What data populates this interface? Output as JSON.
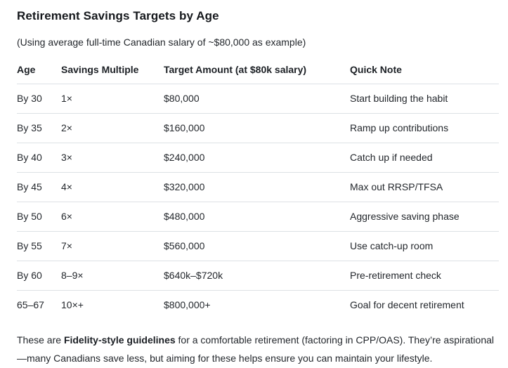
{
  "page": {
    "title": "Retirement Savings Targets by Age",
    "subtitle": "(Using average full-time Canadian salary of ~$80,000 as example)"
  },
  "table": {
    "columns": [
      "Age",
      "Savings Multiple",
      "Target Amount (at $80k salary)",
      "Quick Note"
    ],
    "rows": [
      {
        "age": "By 30",
        "multiple": "1×",
        "target": "$80,000",
        "note": "Start building the habit"
      },
      {
        "age": "By 35",
        "multiple": "2×",
        "target": "$160,000",
        "note": "Ramp up contributions"
      },
      {
        "age": "By 40",
        "multiple": "3×",
        "target": "$240,000",
        "note": "Catch up if needed"
      },
      {
        "age": "By 45",
        "multiple": "4×",
        "target": "$320,000",
        "note": "Max out RRSP/TFSA"
      },
      {
        "age": "By 50",
        "multiple": "6×",
        "target": "$480,000",
        "note": "Aggressive saving phase"
      },
      {
        "age": "By 55",
        "multiple": "7×",
        "target": "$560,000",
        "note": "Use catch-up room"
      },
      {
        "age": "By 60",
        "multiple": "8–9×",
        "target": "$640k–$720k",
        "note": "Pre-retirement check"
      },
      {
        "age": "65–67",
        "multiple": "10×+",
        "target": "$800,000+",
        "note": "Goal for decent retirement"
      }
    ]
  },
  "footer": {
    "prefix": "These are ",
    "bold": "Fidelity-style guidelines",
    "suffix": " for a comfortable retirement (factoring in CPP/OAS). They’re aspirational—many Canadians save less, but aiming for these helps ensure you can maintain your lifestyle."
  }
}
